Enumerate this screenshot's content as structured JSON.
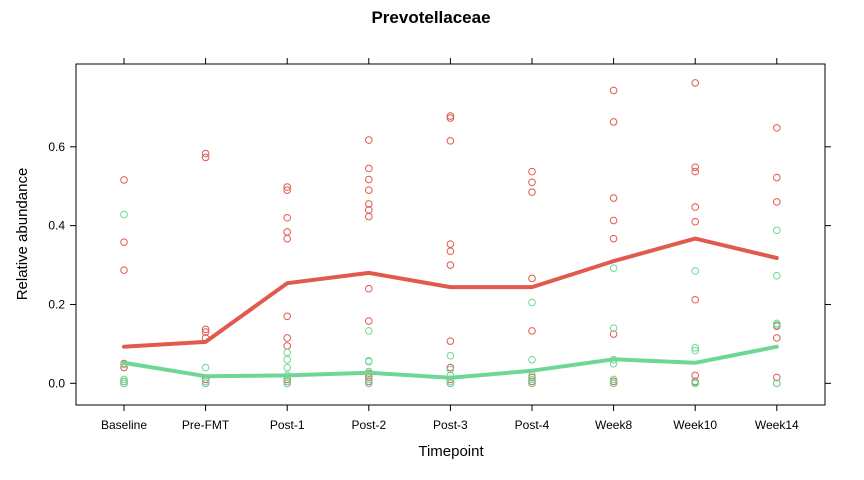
{
  "chart_data": {
    "type": "scatter",
    "title": "Prevotellaceae",
    "xlabel": "Timepoint",
    "ylabel": "Relative abundance",
    "categories": [
      "Baseline",
      "Pre-FMT",
      "Post-1",
      "Post-2",
      "Post-3",
      "Post-4",
      "Week8",
      "Week10",
      "Week14"
    ],
    "yticks": [
      0.0,
      0.2,
      0.4,
      0.6
    ],
    "ytick_labels": [
      "0.0",
      "0.2",
      "0.4",
      "0.6"
    ],
    "ylim": [
      -0.055,
      0.81
    ],
    "grid": false,
    "series": [
      {
        "color": "#e05a4e",
        "trend": [
          0.093,
          0.105,
          0.254,
          0.28,
          0.244,
          0.244,
          0.31,
          0.367,
          0.318
        ],
        "points": [
          [
            0.516,
            0.358,
            0.287,
            0.05,
            0.04,
            0.005,
            0.0
          ],
          [
            0.583,
            0.573,
            0.137,
            0.13,
            0.115,
            0.01,
            0.0
          ],
          [
            0.498,
            0.49,
            0.42,
            0.384,
            0.367,
            0.17,
            0.115,
            0.095,
            0.01,
            0.005,
            0.0
          ],
          [
            0.617,
            0.545,
            0.517,
            0.49,
            0.455,
            0.44,
            0.423,
            0.24,
            0.158,
            0.025,
            0.015,
            0.005,
            0.0
          ],
          [
            0.678,
            0.673,
            0.615,
            0.353,
            0.335,
            0.3,
            0.107,
            0.04,
            0.01,
            0.0
          ],
          [
            0.537,
            0.51,
            0.485,
            0.266,
            0.133,
            0.015,
            0.005,
            0.0
          ],
          [
            0.743,
            0.663,
            0.47,
            0.413,
            0.367,
            0.125,
            0.005,
            0.0
          ],
          [
            0.762,
            0.548,
            0.537,
            0.447,
            0.41,
            0.212,
            0.02,
            0.005,
            0.0
          ],
          [
            0.648,
            0.522,
            0.46,
            0.145,
            0.115,
            0.015,
            0.0
          ]
        ]
      },
      {
        "color": "#6fd795",
        "trend": [
          0.052,
          0.018,
          0.02,
          0.027,
          0.014,
          0.032,
          0.061,
          0.052,
          0.093
        ],
        "points": [
          [
            0.428,
            0.048,
            0.01,
            0.005,
            0.0
          ],
          [
            0.04,
            0.005,
            0.0
          ],
          [
            0.078,
            0.06,
            0.04,
            0.02,
            0.005,
            0.0
          ],
          [
            0.133,
            0.057,
            0.055,
            0.03,
            0.01,
            0.0
          ],
          [
            0.07,
            0.035,
            0.02,
            0.005,
            0.0
          ],
          [
            0.205,
            0.06,
            0.02,
            0.01,
            0.0
          ],
          [
            0.292,
            0.14,
            0.06,
            0.05,
            0.01,
            0.0
          ],
          [
            0.285,
            0.09,
            0.083,
            0.003,
            0.0
          ],
          [
            0.388,
            0.273,
            0.152,
            0.148,
            0.0
          ]
        ]
      }
    ]
  }
}
